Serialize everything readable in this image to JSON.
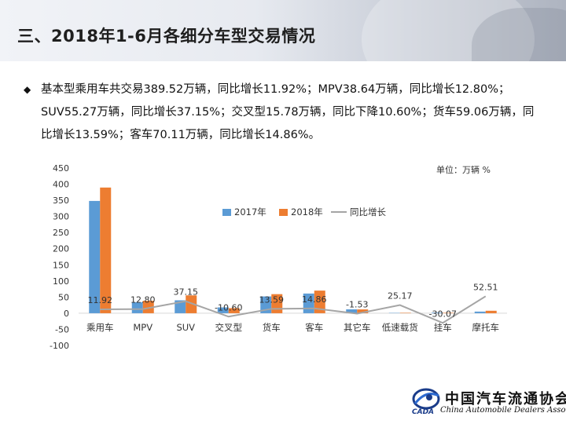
{
  "header": {
    "title": "三、2018年1-6月各细分车型交易情况"
  },
  "summary": {
    "bullet": "◆",
    "text": "基本型乘用车共交易389.52万辆，同比增长11.92%；MPV38.64万辆，同比增长12.80%；SUV55.27万辆，同比增长37.15%；交叉型15.78万辆，同比下降10.60%；货车59.06万辆，同比增长13.59%；客车70.11万辆，同比增长14.86%。"
  },
  "chart_data": {
    "type": "bar",
    "unit_note": "单位：万辆  %",
    "categories": [
      "乘用车",
      "MPV",
      "SUV",
      "交叉型",
      "货车",
      "客车",
      "其它车",
      "低速载货",
      "挂车",
      "摩托车"
    ],
    "series": [
      {
        "name": "2017年",
        "type": "bar",
        "color": "#5b9bd5",
        "values": [
          348,
          34,
          40,
          18,
          52,
          61,
          12,
          1,
          2,
          5
        ]
      },
      {
        "name": "2018年",
        "type": "bar",
        "color": "#ed7d31",
        "values": [
          389.52,
          38.64,
          55.27,
          15.78,
          59.06,
          70.11,
          11.8,
          1.3,
          1.4,
          7.6
        ]
      },
      {
        "name": "同比增长",
        "type": "line",
        "color": "#a5a5a5",
        "values": [
          11.92,
          12.8,
          37.15,
          -10.6,
          13.59,
          14.86,
          -1.53,
          25.17,
          -30.07,
          52.51
        ]
      }
    ],
    "data_labels": [
      "11.92",
      "12.80",
      "37.15",
      "-10.60",
      "13.59",
      "14.86",
      "-1.53",
      "25.17",
      "-30.07",
      "52.51"
    ],
    "y_ticks": [
      "450",
      "400",
      "350",
      "300",
      "250",
      "200",
      "150",
      "100",
      "50",
      "0",
      "-50",
      "-100"
    ],
    "ylim": [
      -100,
      450
    ],
    "legend_position": "top-center",
    "grid": false
  },
  "logo": {
    "cn": "中国汽车流通协会",
    "en": "China Automobile Dealers Association",
    "abbr": "CADA"
  }
}
